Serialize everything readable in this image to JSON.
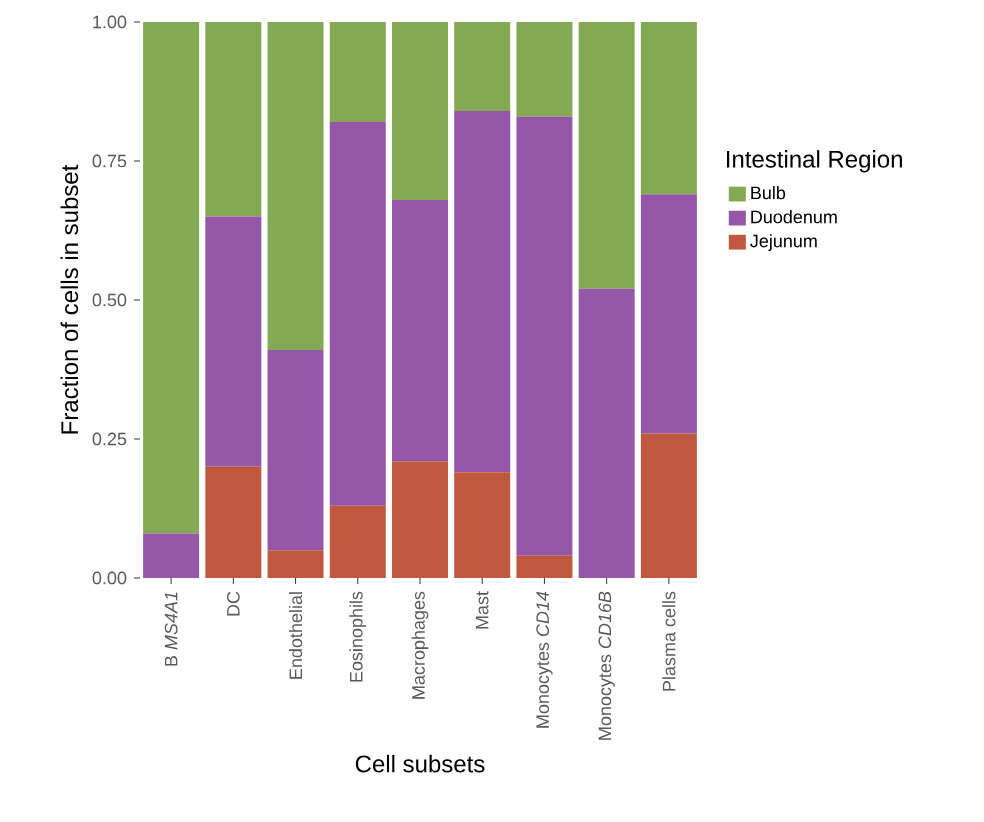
{
  "chart_data": {
    "type": "bar",
    "stacked": true,
    "xlabel": "Cell subsets",
    "ylabel": "Fraction of cells in subset",
    "legend_title": "Intestinal Region",
    "legend": "right",
    "categories": [
      "B *MS4A1*",
      "DC",
      "Endothelial",
      "Eosinophils",
      "Macrophages",
      "Mast",
      "Monocytes *CD14*",
      "Monocytes *CD16B*",
      "Plasma cells"
    ],
    "ylim": [
      0,
      1
    ],
    "yticks": [
      {
        "value": 0,
        "label": "0.00"
      },
      {
        "value": 0.25,
        "label": "0.25"
      },
      {
        "value": 0.5,
        "label": "0.50"
      },
      {
        "value": 0.75,
        "label": "0.75"
      },
      {
        "value": 1,
        "label": "1.00"
      }
    ],
    "series": [
      {
        "name": "Jejunum",
        "color": "#c0583f",
        "values": [
          0,
          0.2,
          0.05,
          0.13,
          0.21,
          0.19,
          0.04,
          0,
          0.26
        ]
      },
      {
        "name": "Duodenum",
        "color": "#9558a8",
        "values": [
          0.08,
          0.45,
          0.36,
          0.69,
          0.47,
          0.65,
          0.79,
          0.52,
          0.43
        ]
      },
      {
        "name": "Bulb",
        "color": "#84a955",
        "values": [
          0.92,
          0.35,
          0.59,
          0.18,
          0.32,
          0.16,
          0.17,
          0.48,
          0.31
        ]
      }
    ]
  }
}
